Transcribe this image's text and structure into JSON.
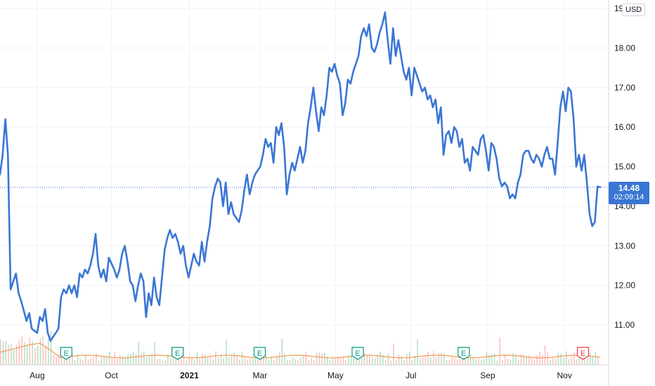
{
  "chart_data": {
    "type": "line",
    "currency": "USD",
    "last_price": "14.48",
    "countdown": "02:09:14",
    "ylim": [
      10.2,
      18.98
    ],
    "y_ticks": [
      "11.00",
      "12.00",
      "13.00",
      "14.00",
      "15.00",
      "16.00",
      "17.00",
      "18.00",
      "19.00"
    ],
    "x_ticks": [
      {
        "label": "Aug",
        "x": 30,
        "bold": false
      },
      {
        "label": "Oct",
        "x": 90,
        "bold": false
      },
      {
        "label": "2021",
        "x": 153,
        "bold": true
      },
      {
        "label": "Mar",
        "x": 210,
        "bold": false
      },
      {
        "label": "May",
        "x": 271,
        "bold": false
      },
      {
        "label": "Jul",
        "x": 332,
        "bold": false
      },
      {
        "label": "Sep",
        "x": 394,
        "bold": false
      },
      {
        "label": "Nov",
        "x": 456,
        "bold": false
      }
    ],
    "xlim": [
      0,
      486
    ],
    "series": [
      {
        "color": "#3a76d4",
        "points": [
          [
            0,
            14.8
          ],
          [
            1,
            15.3
          ],
          [
            2,
            16.2
          ],
          [
            3,
            15.3
          ],
          [
            4,
            11.9
          ],
          [
            6,
            12.3
          ],
          [
            7,
            11.8
          ],
          [
            8,
            11.6
          ],
          [
            10,
            11.1
          ],
          [
            11,
            11.3
          ],
          [
            12,
            10.9
          ],
          [
            14,
            10.8
          ],
          [
            15,
            11.2
          ],
          [
            16,
            11.1
          ],
          [
            17,
            11.4
          ],
          [
            18,
            10.8
          ],
          [
            19,
            10.6
          ],
          [
            20,
            10.7
          ],
          [
            21,
            10.8
          ],
          [
            22,
            10.9
          ],
          [
            23,
            11.7
          ],
          [
            24,
            11.9
          ],
          [
            25,
            11.8
          ],
          [
            26,
            12
          ],
          [
            27,
            11.8
          ],
          [
            28,
            12
          ],
          [
            29,
            11.7
          ],
          [
            30,
            12.3
          ],
          [
            31,
            12.2
          ],
          [
            32,
            12.4
          ],
          [
            33,
            12.3
          ],
          [
            34,
            12.5
          ],
          [
            35,
            12.8
          ],
          [
            36,
            13.3
          ],
          [
            37,
            12.5
          ],
          [
            38,
            12.2
          ],
          [
            39,
            12.4
          ],
          [
            40,
            12.1
          ],
          [
            41,
            12.7
          ],
          [
            43,
            12.4
          ],
          [
            44,
            12.2
          ],
          [
            45,
            12.4
          ],
          [
            46,
            12.8
          ],
          [
            47,
            13
          ],
          [
            48,
            12.6
          ],
          [
            49,
            12.1
          ],
          [
            50,
            12
          ],
          [
            51,
            11.6
          ],
          [
            52,
            12
          ],
          [
            53,
            12.3
          ],
          [
            54,
            12.1
          ],
          [
            55,
            11.2
          ],
          [
            56,
            11.8
          ],
          [
            57,
            11.5
          ],
          [
            58,
            12.2
          ],
          [
            59,
            11.7
          ],
          [
            60,
            11.5
          ],
          [
            61,
            12.2
          ],
          [
            62,
            12.9
          ],
          [
            63,
            13.2
          ],
          [
            64,
            13.4
          ],
          [
            65,
            13.2
          ],
          [
            66,
            13.3
          ],
          [
            67,
            13.1
          ],
          [
            68,
            12.8
          ],
          [
            69,
            13
          ],
          [
            70,
            12.5
          ],
          [
            71,
            12.2
          ],
          [
            72,
            12.5
          ],
          [
            73,
            12.8
          ],
          [
            74,
            12.6
          ],
          [
            75,
            12.5
          ],
          [
            76,
            13.1
          ],
          [
            77,
            12.6
          ],
          [
            78,
            13.1
          ],
          [
            79,
            13.5
          ],
          [
            80,
            14.2
          ],
          [
            81,
            14.5
          ],
          [
            82,
            14.7
          ],
          [
            83,
            14.6
          ],
          [
            84,
            14
          ],
          [
            85,
            14.6
          ],
          [
            86,
            13.8
          ],
          [
            87,
            14.1
          ],
          [
            88,
            13.8
          ],
          [
            89,
            13.7
          ],
          [
            90,
            13.6
          ],
          [
            91,
            13.9
          ],
          [
            92,
            14.4
          ],
          [
            93,
            14.8
          ],
          [
            94,
            14.3
          ],
          [
            95,
            14.6
          ],
          [
            96,
            14.8
          ],
          [
            97,
            14.9
          ],
          [
            98,
            15
          ],
          [
            99,
            15.3
          ],
          [
            100,
            15.7
          ],
          [
            101,
            15.5
          ],
          [
            102,
            15.6
          ],
          [
            103,
            15.1
          ],
          [
            104,
            16
          ],
          [
            105,
            15.8
          ],
          [
            106,
            16.1
          ],
          [
            107,
            15.5
          ],
          [
            108,
            14.3
          ],
          [
            109,
            14.8
          ],
          [
            110,
            15.1
          ],
          [
            111,
            14.9
          ],
          [
            112,
            15.2
          ],
          [
            113,
            15.5
          ],
          [
            114,
            15.1
          ],
          [
            115,
            15.4
          ],
          [
            116,
            16.1
          ],
          [
            117,
            16.5
          ],
          [
            118,
            17
          ],
          [
            119,
            16.4
          ],
          [
            120,
            15.9
          ],
          [
            121,
            16.5
          ],
          [
            122,
            16.3
          ],
          [
            123,
            16.8
          ],
          [
            124,
            17.5
          ],
          [
            125,
            17.4
          ],
          [
            126,
            17.6
          ],
          [
            127,
            17.3
          ],
          [
            128,
            17.1
          ],
          [
            129,
            16.3
          ],
          [
            130,
            16.6
          ],
          [
            131,
            17.2
          ],
          [
            132,
            17.1
          ],
          [
            133,
            17.4
          ],
          [
            134,
            17.6
          ],
          [
            135,
            17.8
          ],
          [
            136,
            18.3
          ],
          [
            137,
            18.5
          ],
          [
            138,
            18.3
          ],
          [
            139,
            18.6
          ],
          [
            140,
            18
          ],
          [
            141,
            17.9
          ],
          [
            142,
            18.1
          ],
          [
            143,
            18.4
          ],
          [
            144,
            18.6
          ],
          [
            145,
            18.9
          ],
          [
            146,
            18.2
          ],
          [
            147,
            17.6
          ],
          [
            148,
            18.5
          ],
          [
            149,
            17.8
          ],
          [
            150,
            18.2
          ],
          [
            151,
            17.8
          ],
          [
            152,
            17.4
          ],
          [
            153,
            17.2
          ],
          [
            154,
            17.5
          ],
          [
            155,
            16.8
          ],
          [
            156,
            17.5
          ],
          [
            157,
            17.3
          ],
          [
            158,
            17.1
          ],
          [
            159,
            16.9
          ],
          [
            160,
            17
          ],
          [
            161,
            16.7
          ],
          [
            162,
            16.8
          ],
          [
            163,
            16.5
          ],
          [
            164,
            16.7
          ],
          [
            165,
            16.1
          ],
          [
            166,
            16.5
          ],
          [
            167,
            15.3
          ],
          [
            168,
            15.8
          ],
          [
            169,
            15.9
          ],
          [
            170,
            15.6
          ],
          [
            171,
            16
          ],
          [
            172,
            15.9
          ],
          [
            173,
            15.5
          ],
          [
            174,
            15.7
          ],
          [
            175,
            15.1
          ],
          [
            176,
            15.2
          ],
          [
            177,
            14.9
          ],
          [
            178,
            15.5
          ],
          [
            179,
            15.4
          ],
          [
            180,
            15.3
          ],
          [
            181,
            15.7
          ],
          [
            182,
            15.8
          ],
          [
            183,
            15.4
          ],
          [
            184,
            14.9
          ],
          [
            185,
            15.6
          ],
          [
            186,
            15.5
          ],
          [
            187,
            15.2
          ],
          [
            188,
            14.7
          ],
          [
            189,
            14.5
          ],
          [
            190,
            14.6
          ],
          [
            191,
            14.5
          ],
          [
            192,
            14.2
          ],
          [
            193,
            14.3
          ],
          [
            194,
            14.2
          ],
          [
            195,
            14.6
          ],
          [
            196,
            14.8
          ],
          [
            197,
            15.3
          ],
          [
            198,
            15.4
          ],
          [
            199,
            15.4
          ],
          [
            200,
            15.2
          ],
          [
            201,
            15.1
          ],
          [
            202,
            15.3
          ],
          [
            203,
            15.2
          ],
          [
            204,
            15
          ],
          [
            205,
            15.3
          ],
          [
            206,
            15.5
          ],
          [
            207,
            15.2
          ],
          [
            208,
            15.2
          ],
          [
            209,
            14.8
          ],
          [
            210,
            15.6
          ],
          [
            211,
            16.5
          ],
          [
            212,
            16.9
          ],
          [
            213,
            16.4
          ],
          [
            214,
            17
          ],
          [
            215,
            16.9
          ],
          [
            216,
            16.2
          ],
          [
            217,
            15
          ],
          [
            218,
            15.3
          ],
          [
            219,
            14.9
          ],
          [
            220,
            15.3
          ],
          [
            221,
            14.6
          ],
          [
            222,
            13.8
          ],
          [
            223,
            13.5
          ],
          [
            224,
            13.6
          ],
          [
            225,
            14.5
          ],
          [
            226,
            14.48
          ]
        ]
      }
    ]
  },
  "earnings_markers": [
    {
      "label": "E",
      "color": "#089981",
      "x_day": 50
    },
    {
      "label": "E",
      "color": "#089981",
      "x_day": 134
    },
    {
      "label": "E",
      "color": "#089981",
      "x_day": 196
    },
    {
      "label": "E",
      "color": "#089981",
      "x_day": 270
    },
    {
      "label": "E",
      "color": "#089981",
      "x_day": 350
    },
    {
      "label": "E",
      "color": "#f23645",
      "x_day": 440
    }
  ],
  "colors": {
    "line": "#3a76d4",
    "volume_up": "#a8d8b5",
    "volume_down": "#f5b7b1",
    "volume_ma": "#f5a05a",
    "grid": "#f0f3fa",
    "axis_border": "#d1d4dc",
    "price_line": "#3a76d4"
  }
}
